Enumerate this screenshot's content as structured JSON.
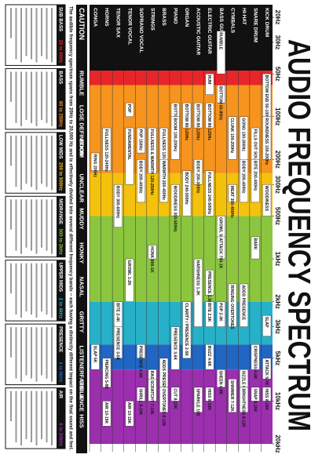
{
  "title": "AUDIO FREQUENCY SPECTRUM",
  "axis": {
    "range": [
      20,
      20000
    ],
    "ticks": [
      {
        "value": 20,
        "label": "20Hz"
      },
      {
        "value": 30,
        "label": "30Hz"
      },
      {
        "value": 50,
        "label": "50Hz"
      },
      {
        "value": 100,
        "label": "100Hz"
      },
      {
        "value": 200,
        "label": "200Hz"
      },
      {
        "value": 300,
        "label": "300Hz"
      },
      {
        "value": 500,
        "label": "500Hz"
      },
      {
        "value": 1000,
        "label": "1kHz"
      },
      {
        "value": 2000,
        "label": "2kHz"
      },
      {
        "value": 3000,
        "label": "3kHz"
      },
      {
        "value": 5000,
        "label": "5kHz"
      },
      {
        "value": 10000,
        "label": "10kHz"
      },
      {
        "value": 20000,
        "label": "20kHz"
      }
    ]
  },
  "instruments": [
    {
      "name": "KICK DRUM",
      "segments": [
        {
          "label": "BOTTOM END 50-100Hz",
          "from": 50,
          "to": 100
        },
        {
          "label": "ROUNDNESS 100-200Hz",
          "from": 100,
          "to": 200
        },
        {
          "label": "WOODINESS",
          "from": 300,
          "to": 500
        },
        {
          "label": "SLAP",
          "from": 2500,
          "to": 3500
        },
        {
          "label": "ATTACK 5-7K",
          "from": 5000,
          "to": 7000
        },
        {
          "label": "HISS 8-10K",
          "from": 8000,
          "to": 10000
        }
      ]
    },
    {
      "name": "SNARE DRUM",
      "segments": [
        {
          "label": "FILLS OUT SOUND 120-250Hz",
          "from": 120,
          "to": 250
        },
        {
          "label": "BITE 200-400Hz",
          "from": 200,
          "to": 400
        },
        {
          "label": "BARK",
          "from": 700,
          "to": 1000
        },
        {
          "label": "CRISPNESS 4-6K",
          "from": 4000,
          "to": 6000
        },
        {
          "label": "SNAP 8-10K",
          "from": 8000,
          "to": 10000
        }
      ]
    },
    {
      "name": "HI-HAT",
      "segments": [
        {
          "label": "GONG 100-300Hz",
          "from": 100,
          "to": 300
        },
        {
          "label": "BODY 200-400Hz",
          "from": 200,
          "to": 400
        },
        {
          "label": "ADDS PRESENCE",
          "from": 1500,
          "to": 3000
        },
        {
          "label": "SIZZLE 6-8K",
          "from": 6000,
          "to": 8000
        },
        {
          "label": "BRIGHTNESS 8-12K",
          "from": 8000,
          "to": 12000
        }
      ]
    },
    {
      "name": "CYMBALS",
      "segments": [
        {
          "label": "CLUNK 100-200Hz",
          "from": 100,
          "to": 200
        },
        {
          "label": "MEAT 300-400Hz",
          "from": 300,
          "to": 400
        },
        {
          "label": "RINGING OVERTONES",
          "from": 1500,
          "to": 3000
        },
        {
          "label": "SHIMMER 7-12K",
          "from": 7000,
          "to": 12000
        }
      ]
    },
    {
      "name": "BASS GUITAR",
      "segments": [
        {
          "label": "RUMBLE",
          "from": 25,
          "to": 50
        },
        {
          "label": "BOTTOM 60-80Hz",
          "from": 60,
          "to": 80
        },
        {
          "label": "GROWL 500-800Hz",
          "from": 500,
          "to": 800
        },
        {
          "label": "ATTACK 700-1K",
          "from": 700,
          "to": 1000
        },
        {
          "label": "POP 2-3K",
          "from": 2000,
          "to": 3000
        },
        {
          "label": "SHEEN 6-8K",
          "from": 6000,
          "to": 8000
        }
      ]
    },
    {
      "name": "ELECTRIC GUITAR",
      "segments": [
        {
          "label": "HUM",
          "from": 50,
          "to": 70
        },
        {
          "label": "BOTTOM 80-120Hz",
          "from": 80,
          "to": 120
        },
        {
          "label": "FULLNESS 240-500Hz",
          "from": 240,
          "to": 500
        },
        {
          "label": "PRESENCE 1.5K",
          "from": 1200,
          "to": 1800
        },
        {
          "label": "BITE 2.5K",
          "from": 2000,
          "to": 3000
        },
        {
          "label": "BUZZ 4-6K",
          "from": 4000,
          "to": 6000
        },
        {
          "label": "HISS 8-10K",
          "from": 8000,
          "to": 10000
        }
      ]
    },
    {
      "name": "ACOUSTIC GUITAR",
      "segments": [
        {
          "label": "BOTTOM 80-120Hz",
          "from": 80,
          "to": 120
        },
        {
          "label": "BODY 200-300Hz",
          "from": 200,
          "to": 300
        },
        {
          "label": "HARSHNESS 1-3K",
          "from": 1000,
          "to": 3000
        },
        {
          "label": "SPARKLE 10K",
          "from": 8000,
          "to": 12000
        }
      ]
    },
    {
      "name": "ORGAN",
      "segments": [
        {
          "label": "BOTTOM 80-120Hz",
          "from": 80,
          "to": 120
        },
        {
          "label": "BODY 240-500Hz",
          "from": 240,
          "to": 500
        },
        {
          "label": "CLARITY / PRESENCE 2-5K",
          "from": 2000,
          "to": 5000
        }
      ]
    },
    {
      "name": "PIANO",
      "segments": [
        {
          "label": "BOTTOM 80-120Hz",
          "from": 80,
          "to": 120
        },
        {
          "label": "BOOM 100-200Hz",
          "from": 100,
          "to": 200
        },
        {
          "label": "WOODINESS 300-500Hz",
          "from": 300,
          "to": 500
        },
        {
          "label": "PRESENCE 3-6K",
          "from": 3000,
          "to": 6000
        },
        {
          "label": "CUT 8-10K",
          "from": 8000,
          "to": 10000
        }
      ]
    },
    {
      "name": "BRASS",
      "segments": [
        {
          "label": "FULLNESS 120-240Hz",
          "from": 120,
          "to": 240
        },
        {
          "label": "WARMTH 200-400Hz",
          "from": 200,
          "to": 400
        },
        {
          "label": "ADDS PRESENCE 5-8K",
          "from": 5000,
          "to": 8000
        },
        {
          "label": "OVERTONES 8-12K",
          "from": 8000,
          "to": 12000
        }
      ]
    },
    {
      "name": "STRINGS",
      "segments": [
        {
          "label": "FULLNESS & WARMTH 120-250Hz",
          "from": 120,
          "to": 250
        },
        {
          "label": "HONK 800-1K",
          "from": 800,
          "to": 1000
        },
        {
          "label": "RASP 6-8K",
          "from": 6000,
          "to": 8000
        },
        {
          "label": "SCRATCHY 7-10K",
          "from": 7000,
          "to": 10000
        }
      ]
    },
    {
      "name": "SOPRANO VOCAL",
      "segments": [
        {
          "label": "POP 150Hz",
          "from": 120,
          "to": 180
        },
        {
          "label": "BODY 200-400Hz",
          "from": 200,
          "to": 400
        },
        {
          "label": "PRESENCE 4-5K",
          "from": 4000,
          "to": 5000
        },
        {
          "label": "SHRILL 8-10K",
          "from": 8000,
          "to": 10000
        }
      ]
    },
    {
      "name": "TENOR VOCAL",
      "segments": [
        {
          "label": "POP",
          "from": 80,
          "to": 100
        },
        {
          "label": "FUNDAMENTAL",
          "from": 120,
          "to": 300
        },
        {
          "label": "GROWL 1-2K",
          "from": 1000,
          "to": 2000
        },
        {
          "label": "AIR 10-15K",
          "from": 10000,
          "to": 15000
        }
      ]
    },
    {
      "name": "TENOR SAX",
      "segments": [
        {
          "label": "BODY 300-600Hz",
          "from": 300,
          "to": 600
        },
        {
          "label": "BITE 2-4K",
          "from": 2000,
          "to": 4000
        },
        {
          "label": "PRESENCE 3-5K",
          "from": 3000,
          "to": 5000
        }
      ]
    },
    {
      "name": "HORNS",
      "segments": [
        {
          "label": "FULLNESS 120-240Hz",
          "from": 120,
          "to": 240
        },
        {
          "label": "PIERCING 5-8K",
          "from": 5000,
          "to": 8000
        },
        {
          "label": "AIR 10-15K",
          "from": 10000,
          "to": 15000
        }
      ]
    },
    {
      "name": "CONGA",
      "segments": [
        {
          "label": "RING 200Hz",
          "from": 180,
          "to": 240
        },
        {
          "label": "SLAP 5K",
          "from": 4000,
          "to": 6000
        }
      ]
    }
  ],
  "caution": [
    "CAUTION",
    "RUMBLE",
    "LOSE DEFINITION",
    "BOOM",
    "UNCLEAR",
    "MUDDY",
    "HONKY",
    "NASAL",
    "GRITTY",
    "LISTENERFATIGUE",
    "SIBILANCE",
    "HISS"
  ],
  "intro": "The audible frequency spectrum spans from 20Hz to 20,000 Hz and is effectively divided into several different frequency bands -- each having a distinctly different impact on the final sound and feel.",
  "bands": [
    {
      "name": "SUB BASS",
      "range": "20 to 60Hz",
      "from": 20,
      "to": 60,
      "color": "#e8262a"
    },
    {
      "name": "BASS",
      "range": "60 to 250Hz",
      "from": 60,
      "to": 250,
      "color": "#f7941d"
    },
    {
      "name": "LOW MIDS",
      "range": "250 to 500Hz",
      "from": 250,
      "to": 500,
      "color": "#f4c20d"
    },
    {
      "name": "MIDRANGE",
      "range": "500 to 2kHz",
      "from": 500,
      "to": 2000,
      "color": "#8cc63f"
    },
    {
      "name": "UPPER MIDS",
      "range": "2 to 4kHz",
      "from": 2000,
      "to": 4000,
      "color": "#27b1c9"
    },
    {
      "name": "PRESENCE",
      "range": "4 to 6kHz",
      "from": 4000,
      "to": 6000,
      "color": "#2266c4"
    },
    {
      "name": "AIR",
      "range": "6 to 20kHz",
      "from": 6000,
      "to": 20000,
      "color": "#9b2fae"
    }
  ]
}
